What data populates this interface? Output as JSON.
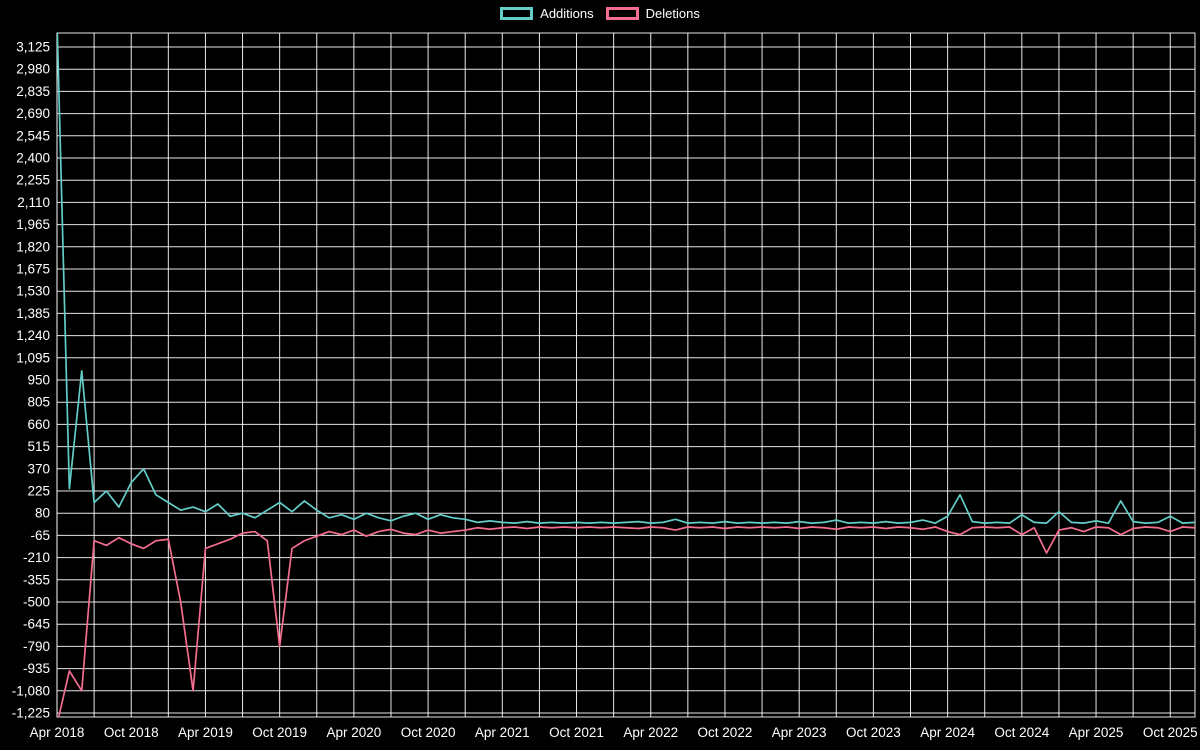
{
  "page": {
    "background": "#000000",
    "text_color": "#ffffff"
  },
  "chart_data": {
    "type": "line",
    "title": "",
    "xlabel": "",
    "ylabel": "",
    "background": "#000000",
    "grid": true,
    "grid_color": "#ffffff",
    "text_color": "#ffffff",
    "legend_position": "top",
    "ylim": [
      -1225,
      3125
    ],
    "y_ticks": [
      3125,
      2980,
      2835,
      2690,
      2545,
      2400,
      2255,
      2110,
      1965,
      1820,
      1675,
      1530,
      1385,
      1240,
      1095,
      950,
      805,
      660,
      515,
      370,
      225,
      80,
      -65,
      -210,
      -355,
      -500,
      -645,
      -790,
      -935,
      -1080,
      -1225
    ],
    "y_tick_labels": [
      "3,125",
      "2,980",
      "2,835",
      "2,690",
      "2,545",
      "2,400",
      "2,255",
      "2,110",
      "1,965",
      "1,820",
      "1,675",
      "1,530",
      "1,385",
      "1,240",
      "1,095",
      "950",
      "805",
      "660",
      "515",
      "370",
      "225",
      "80",
      "-65",
      "-210",
      "-355",
      "-500",
      "-645",
      "-790",
      "-935",
      "-1,080",
      "-1,225"
    ],
    "x_tick_labels": [
      "Apr 2018",
      "Oct 2018",
      "Apr 2019",
      "Oct 2019",
      "Apr 2020",
      "Oct 2020",
      "Apr 2021",
      "Oct 2021",
      "Apr 2022",
      "Oct 2022",
      "Apr 2023",
      "Oct 2023",
      "Apr 2024",
      "Oct 2024",
      "Apr 2025",
      "Oct 2025"
    ],
    "x": [
      "2018-04",
      "2018-05",
      "2018-06",
      "2018-07",
      "2018-08",
      "2018-09",
      "2018-10",
      "2018-11",
      "2018-12",
      "2019-01",
      "2019-02",
      "2019-03",
      "2019-04",
      "2019-05",
      "2019-06",
      "2019-07",
      "2019-08",
      "2019-09",
      "2019-10",
      "2019-11",
      "2019-12",
      "2020-01",
      "2020-02",
      "2020-03",
      "2020-04",
      "2020-05",
      "2020-06",
      "2020-07",
      "2020-08",
      "2020-09",
      "2020-10",
      "2020-11",
      "2020-12",
      "2021-01",
      "2021-02",
      "2021-03",
      "2021-04",
      "2021-05",
      "2021-06",
      "2021-07",
      "2021-08",
      "2021-09",
      "2021-10",
      "2021-11",
      "2021-12",
      "2022-01",
      "2022-02",
      "2022-03",
      "2022-04",
      "2022-05",
      "2022-06",
      "2022-07",
      "2022-08",
      "2022-09",
      "2022-10",
      "2022-11",
      "2022-12",
      "2023-01",
      "2023-02",
      "2023-03",
      "2023-04",
      "2023-05",
      "2023-06",
      "2023-07",
      "2023-08",
      "2023-09",
      "2023-10",
      "2023-11",
      "2023-12",
      "2024-01",
      "2024-02",
      "2024-03",
      "2024-04",
      "2024-05",
      "2024-06",
      "2024-07",
      "2024-08",
      "2024-09",
      "2024-10",
      "2024-11",
      "2024-12",
      "2025-01",
      "2025-02",
      "2025-03",
      "2025-04",
      "2025-05",
      "2025-06",
      "2025-07",
      "2025-08",
      "2025-09",
      "2025-10",
      "2025-11",
      "2025-12"
    ],
    "series": [
      {
        "name": "Additions",
        "color": "#63cdc7",
        "values": [
          3300,
          240,
          1010,
          150,
          225,
          120,
          280,
          370,
          200,
          150,
          100,
          120,
          90,
          140,
          60,
          80,
          50,
          100,
          150,
          90,
          160,
          100,
          50,
          70,
          40,
          80,
          50,
          30,
          60,
          80,
          40,
          70,
          50,
          40,
          20,
          30,
          20,
          15,
          25,
          15,
          20,
          15,
          20,
          15,
          20,
          15,
          20,
          25,
          15,
          20,
          40,
          15,
          20,
          15,
          25,
          15,
          20,
          15,
          20,
          15,
          25,
          15,
          20,
          35,
          15,
          20,
          15,
          25,
          15,
          20,
          35,
          15,
          60,
          200,
          25,
          15,
          20,
          15,
          70,
          20,
          15,
          90,
          20,
          15,
          30,
          15,
          160,
          25,
          15,
          20,
          60,
          15,
          20
        ]
      },
      {
        "name": "Deletions",
        "color": "#f56e90",
        "values": [
          -1300,
          -950,
          -1080,
          -100,
          -130,
          -80,
          -120,
          -150,
          -100,
          -90,
          -500,
          -1080,
          -150,
          -120,
          -90,
          -50,
          -40,
          -100,
          -790,
          -150,
          -100,
          -70,
          -40,
          -60,
          -30,
          -70,
          -40,
          -25,
          -50,
          -60,
          -30,
          -50,
          -40,
          -30,
          -15,
          -25,
          -15,
          -10,
          -20,
          -10,
          -15,
          -10,
          -15,
          -10,
          -15,
          -10,
          -15,
          -20,
          -10,
          -15,
          -30,
          -10,
          -15,
          -10,
          -20,
          -10,
          -15,
          -10,
          -15,
          -10,
          -20,
          -10,
          -15,
          -25,
          -10,
          -15,
          -10,
          -20,
          -10,
          -15,
          -25,
          -10,
          -40,
          -60,
          -15,
          -10,
          -15,
          -10,
          -60,
          -15,
          -180,
          -30,
          -15,
          -40,
          -10,
          -15,
          -60,
          -20,
          -10,
          -15,
          -40,
          -10,
          -15
        ]
      }
    ]
  }
}
